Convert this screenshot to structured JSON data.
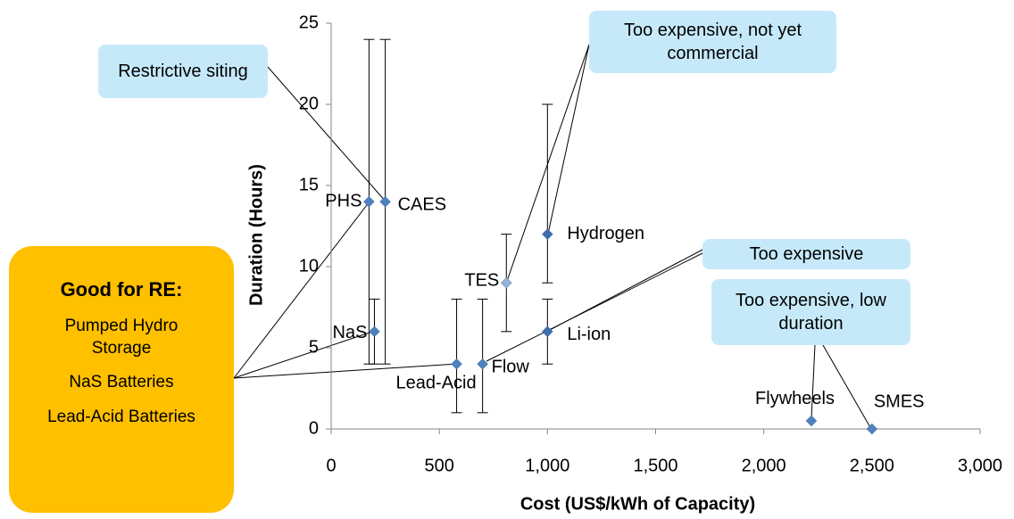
{
  "chart_data": {
    "type": "scatter",
    "x_label": "Cost (US$/kWh of Capacity)",
    "y_label": "Duration (Hours)",
    "labels": [
      "PHS",
      "CAES",
      "NaS",
      "Lead-Acid",
      "Flow",
      "TES",
      "Hydrogen",
      "Li-ion",
      "Flywheels",
      "SMES"
    ],
    "x": [
      175,
      250,
      200,
      580,
      700,
      810,
      1000,
      1000,
      2220,
      2500
    ],
    "values": [
      14,
      14,
      6,
      4,
      4,
      9,
      12,
      6,
      0.5,
      0
    ],
    "low": [
      4,
      4,
      4,
      1,
      1,
      6,
      9,
      4,
      null,
      null
    ],
    "high": [
      24,
      24,
      8,
      8,
      8,
      12,
      20,
      8,
      null,
      null
    ],
    "color": "#3f6fa8",
    "point_colors": [
      "#4f81bd",
      "#4f81bd",
      "#4f81bd",
      "#4f81bd",
      "#4f81bd",
      "#95b3d7",
      "#3f6fa8",
      "#3f6fa8",
      "#4f81bd",
      "#4f81bd"
    ],
    "xlim": [
      0,
      3000
    ],
    "xticks": [
      0,
      500,
      {
        "value": 1000,
        "label": "1,000"
      },
      {
        "value": 1500,
        "label": "1,500"
      },
      {
        "value": 2000,
        "label": "2,000"
      },
      {
        "value": 2500,
        "label": "2,500"
      },
      {
        "value": 3000,
        "label": "3,000"
      }
    ],
    "ylim": [
      0,
      25
    ],
    "yticks": [
      0,
      5,
      10,
      15,
      20,
      25
    ],
    "annotations": [
      "Restrictive siting",
      "Too expensive, not yet commercial",
      "Too expensive",
      "Too expensive, low duration"
    ],
    "side_box": {
      "title": "Good for  RE:",
      "items": [
        "Pumped Hydro Storage",
        "NaS Batteries",
        "Lead-Acid Batteries"
      ]
    }
  }
}
